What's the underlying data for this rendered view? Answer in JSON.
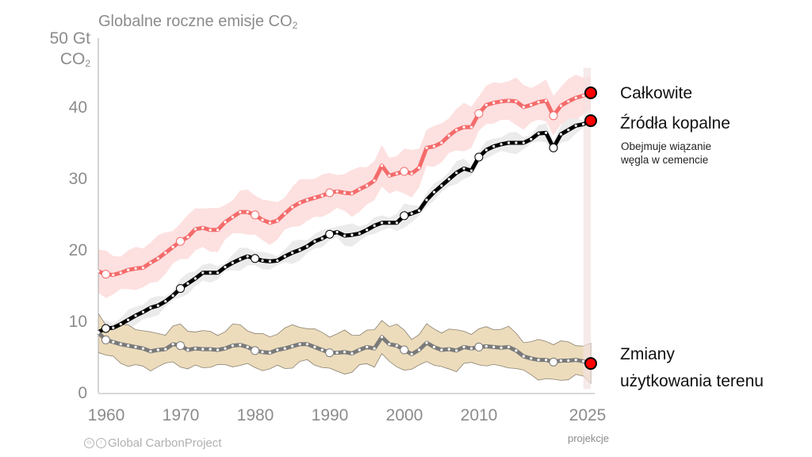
{
  "chart_data": {
    "type": "line",
    "title": "Globalne roczne emisje CO",
    "title_subscript": "2",
    "ylabel_line1": "50 Gt",
    "ylabel_line2": "CO",
    "ylabel_subscript": "2",
    "xlabel": "",
    "xlim": [
      1959,
      2025
    ],
    "ylim": [
      0,
      50
    ],
    "yticks": [
      "0",
      "10",
      "20",
      "30",
      "40"
    ],
    "ytick_values": [
      0,
      10,
      20,
      30,
      40
    ],
    "xticks": [
      "1960",
      "1970",
      "1980",
      "1990",
      "2000",
      "2010",
      "2025"
    ],
    "xtick_values": [
      1960,
      1970,
      1980,
      1990,
      2000,
      2010,
      2025
    ],
    "x_note": "projekcje",
    "projection_start": 2024,
    "grid": false,
    "years": [
      1959,
      1960,
      1961,
      1962,
      1963,
      1964,
      1965,
      1966,
      1967,
      1968,
      1969,
      1970,
      1971,
      1972,
      1973,
      1974,
      1975,
      1976,
      1977,
      1978,
      1979,
      1980,
      1981,
      1982,
      1983,
      1984,
      1985,
      1986,
      1987,
      1988,
      1989,
      1990,
      1991,
      1992,
      1993,
      1994,
      1995,
      1996,
      1997,
      1998,
      1999,
      2000,
      2001,
      2002,
      2003,
      2004,
      2005,
      2006,
      2007,
      2008,
      2009,
      2010,
      2011,
      2012,
      2013,
      2014,
      2015,
      2016,
      2017,
      2018,
      2019,
      2020,
      2021,
      2022,
      2023,
      2024,
      2025
    ],
    "series": [
      {
        "name": "Całkowite",
        "color": "#f46b6b",
        "band_color": "#fde0e0",
        "values": [
          17.0,
          16.6,
          16.5,
          16.8,
          17.2,
          17.4,
          17.5,
          18.2,
          18.8,
          19.6,
          20.4,
          21.2,
          21.8,
          22.9,
          23.1,
          22.8,
          22.8,
          23.9,
          24.6,
          25.3,
          25.3,
          24.9,
          24.2,
          23.8,
          24.1,
          25.1,
          26.0,
          26.6,
          27.0,
          27.3,
          27.6,
          28.0,
          28.2,
          28.0,
          27.9,
          28.5,
          29.0,
          29.7,
          31.8,
          30.4,
          30.7,
          31.0,
          30.7,
          31.5,
          34.3,
          34.5,
          35.0,
          36.0,
          36.8,
          37.2,
          37.2,
          39.1,
          40.3,
          40.6,
          40.8,
          40.9,
          40.8,
          40.0,
          40.3,
          40.7,
          40.9,
          38.8,
          40.2,
          40.8,
          41.3,
          41.6,
          42.0
        ],
        "band_halfwidth": 2.8
      },
      {
        "name": "Źródła kopalne",
        "color": "#000000",
        "band_color": "#ebebeb",
        "values": [
          8.5,
          9.0,
          9.1,
          9.6,
          10.2,
          10.8,
          11.3,
          11.9,
          12.2,
          12.8,
          13.6,
          14.6,
          15.3,
          16.0,
          16.8,
          16.8,
          16.8,
          17.6,
          18.2,
          18.7,
          19.1,
          18.8,
          18.5,
          18.4,
          18.5,
          19.1,
          19.6,
          20.0,
          20.5,
          21.2,
          21.6,
          22.2,
          22.5,
          22.0,
          22.1,
          22.3,
          22.8,
          23.4,
          23.8,
          23.8,
          23.8,
          24.8,
          25.1,
          25.5,
          27.0,
          28.1,
          29.0,
          29.9,
          30.8,
          31.4,
          31.1,
          33.0,
          34.0,
          34.5,
          34.8,
          35.0,
          35.0,
          35.0,
          35.5,
          36.3,
          36.4,
          34.3,
          36.2,
          36.8,
          37.4,
          37.6,
          38.1
        ],
        "band_halfwidth": 1.1
      },
      {
        "name": "Zmiany użytkowania terenu",
        "color": "#8d8d8d",
        "band_color": "#ecdcbc",
        "values": [
          8.4,
          7.4,
          7.1,
          6.8,
          6.6,
          6.4,
          6.2,
          5.8,
          6.0,
          6.1,
          6.8,
          6.6,
          6.0,
          6.2,
          6.1,
          6.1,
          6.0,
          6.2,
          6.6,
          6.7,
          6.4,
          5.9,
          5.7,
          5.6,
          6.0,
          6.2,
          6.5,
          6.8,
          6.8,
          6.4,
          6.0,
          5.6,
          5.6,
          5.7,
          5.5,
          6.0,
          6.4,
          6.2,
          7.8,
          6.8,
          6.6,
          6.0,
          5.4,
          6.0,
          7.0,
          6.4,
          6.0,
          6.1,
          5.9,
          6.4,
          6.2,
          6.4,
          6.5,
          6.4,
          6.3,
          6.4,
          5.9,
          5.1,
          4.8,
          4.6,
          4.6,
          4.3,
          4.5,
          4.5,
          4.6,
          4.4,
          4.1
        ],
        "band_halfwidth": 2.5
      }
    ],
    "annotations": {
      "total_label": "Całkowite",
      "fossil_label": "Źródła kopalne",
      "fossil_note_line1": "Obejmuje wiązanie",
      "fossil_note_line2": "węgla w cemencie",
      "land_label_line1": "Zmiany",
      "land_label_line2": "użytkowania terenu"
    },
    "endpoint_marker_color": "#ff0000",
    "decade_markers": [
      1960,
      1970,
      1980,
      1990,
      2000,
      2010,
      2020
    ]
  },
  "credit": {
    "icons": [
      "cc-icon",
      "attribution-icon"
    ],
    "text": "Global CarbonProject"
  }
}
